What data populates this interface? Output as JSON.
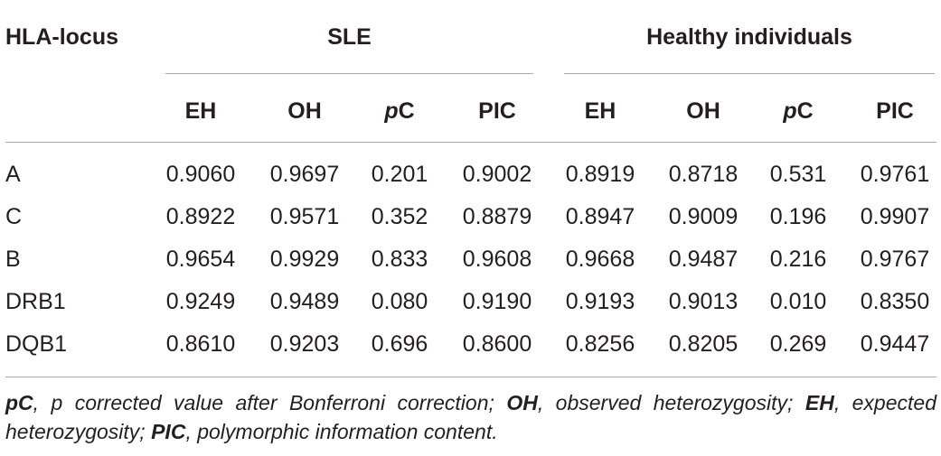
{
  "table": {
    "header": {
      "locus_label": "HLA-locus",
      "group_sle": "SLE",
      "group_healthy": "Healthy individuals",
      "sle_cols": [
        {
          "label": "EH",
          "italic_prefix": ""
        },
        {
          "label": "OH",
          "italic_prefix": ""
        },
        {
          "label": "C",
          "italic_prefix": "p"
        },
        {
          "label": "PIC",
          "italic_prefix": ""
        }
      ],
      "healthy_cols": [
        {
          "label": "EH",
          "italic_prefix": ""
        },
        {
          "label": "OH",
          "italic_prefix": ""
        },
        {
          "label": "C",
          "italic_prefix": "p"
        },
        {
          "label": "PIC",
          "italic_prefix": ""
        }
      ]
    },
    "rows": [
      {
        "locus": "A",
        "values": [
          "0.9060",
          "0.9697",
          "0.201",
          "0.9002",
          "0.8919",
          "0.8718",
          "0.531",
          "0.9761"
        ]
      },
      {
        "locus": "C",
        "values": [
          "0.8922",
          "0.9571",
          "0.352",
          "0.8879",
          "0.8947",
          "0.9009",
          "0.196",
          "0.9907"
        ]
      },
      {
        "locus": "B",
        "values": [
          "0.9654",
          "0.9929",
          "0.833",
          "0.9608",
          "0.9668",
          "0.9487",
          "0.216",
          "0.9767"
        ]
      },
      {
        "locus": "DRB1",
        "values": [
          "0.9249",
          "0.9489",
          "0.080",
          "0.9190",
          "0.9193",
          "0.9013",
          "0.010",
          "0.8350"
        ]
      },
      {
        "locus": "DQB1",
        "values": [
          "0.8610",
          "0.9203",
          "0.696",
          "0.8600",
          "0.8256",
          "0.8205",
          "0.269",
          "0.9447"
        ]
      }
    ]
  },
  "footnote": {
    "term1": "pC",
    "def1": ", p corrected value after Bonferroni correction; ",
    "term2": "OH",
    "def2": ", observed heterozygosity; ",
    "term3": "EH",
    "def3": ", expected heterozygosity; ",
    "term4": "PIC",
    "def4": ", polymorphic information content."
  }
}
